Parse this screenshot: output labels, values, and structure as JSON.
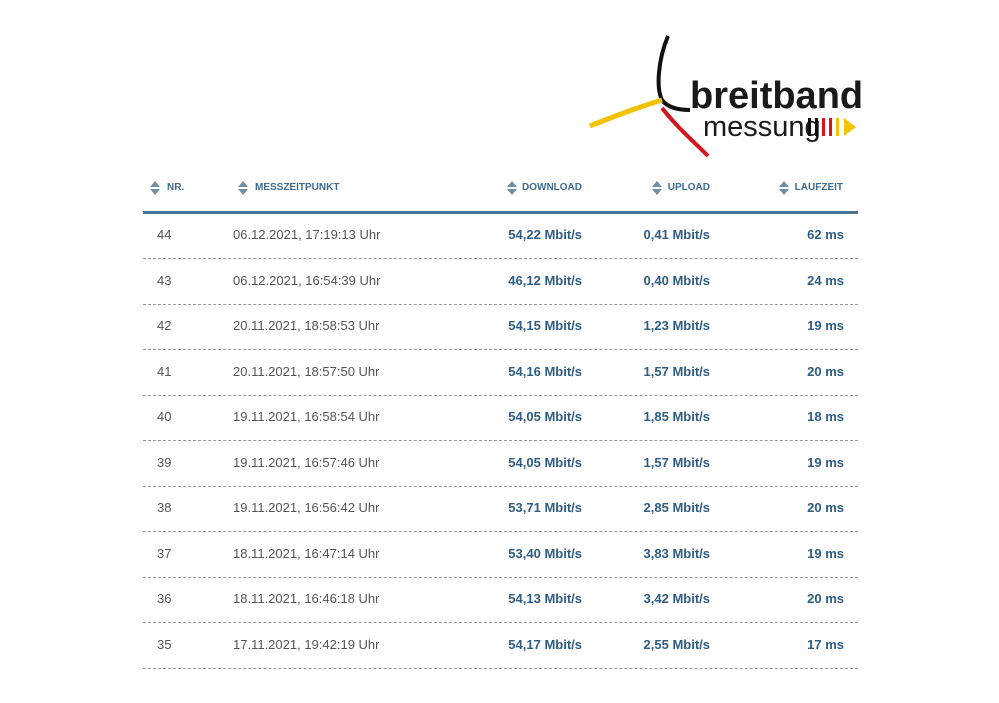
{
  "logo": {
    "line1": "breitband",
    "line2": "messung"
  },
  "table": {
    "headers": [
      "NR.",
      "MESSZEITPUNKT",
      "DOWNLOAD",
      "UPLOAD",
      "LAUFZEIT"
    ],
    "rows": [
      [
        "44",
        "06.12.2021, 17:19:13 Uhr",
        "54,22 Mbit/s",
        "0,41 Mbit/s",
        "62 ms"
      ],
      [
        "43",
        "06.12.2021, 16:54:39 Uhr",
        "46,12 Mbit/s",
        "0,40 Mbit/s",
        "24 ms"
      ],
      [
        "42",
        "20.11.2021, 18:58:53 Uhr",
        "54,15 Mbit/s",
        "1,23 Mbit/s",
        "19 ms"
      ],
      [
        "41",
        "20.11.2021, 18:57:50 Uhr",
        "54,16 Mbit/s",
        "1,57 Mbit/s",
        "20 ms"
      ],
      [
        "40",
        "19.11.2021, 16:58:54 Uhr",
        "54,05 Mbit/s",
        "1,85 Mbit/s",
        "18 ms"
      ],
      [
        "39",
        "19.11.2021, 16:57:46 Uhr",
        "54,05 Mbit/s",
        "1,57 Mbit/s",
        "19 ms"
      ],
      [
        "38",
        "19.11.2021, 16:56:42 Uhr",
        "53,71 Mbit/s",
        "2,85 Mbit/s",
        "20 ms"
      ],
      [
        "37",
        "18.11.2021, 16:47:14 Uhr",
        "53,40 Mbit/s",
        "3,83 Mbit/s",
        "19 ms"
      ],
      [
        "36",
        "18.11.2021, 16:46:18 Uhr",
        "54,13 Mbit/s",
        "3,42 Mbit/s",
        "20 ms"
      ],
      [
        "35",
        "17.11.2021, 19:42:19 Uhr",
        "54,17 Mbit/s",
        "2,55 Mbit/s",
        "17 ms"
      ]
    ]
  }
}
